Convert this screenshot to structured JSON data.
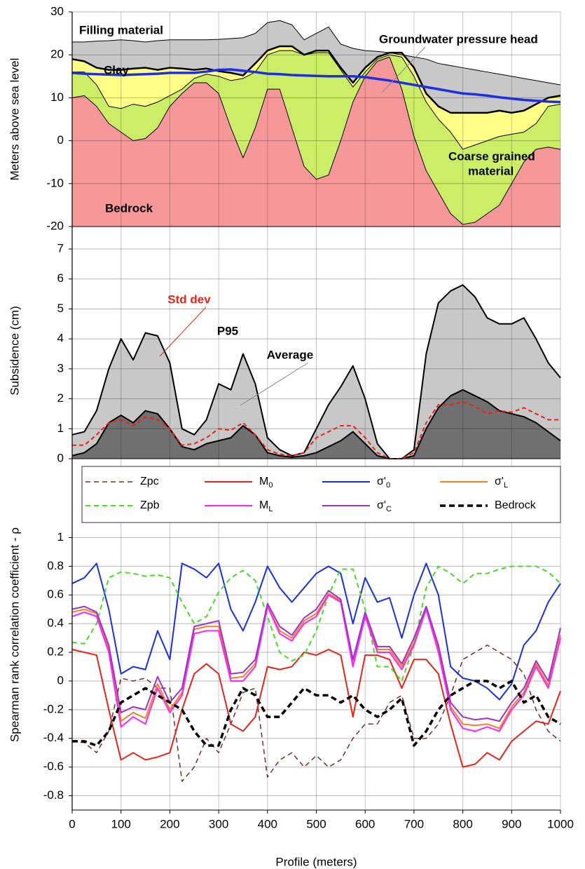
{
  "chart_data": [
    {
      "type": "area",
      "fill_between_layers": true,
      "grid": true,
      "y_label": "Meters above sea level",
      "x": [
        0,
        25,
        50,
        75,
        100,
        125,
        150,
        175,
        200,
        225,
        250,
        275,
        300,
        325,
        350,
        375,
        400,
        425,
        450,
        475,
        500,
        525,
        550,
        575,
        600,
        625,
        650,
        675,
        700,
        725,
        750,
        775,
        800,
        825,
        850,
        875,
        900,
        925,
        950,
        975,
        1000
      ],
      "xlim": [
        0,
        1000
      ],
      "xticks": [
        0,
        100,
        200,
        300,
        400,
        500,
        600,
        700,
        800,
        900,
        1000
      ],
      "ylim": [
        -20,
        30
      ],
      "yticks": [
        -20,
        -10,
        0,
        10,
        20,
        30
      ],
      "annotations": [
        "Filling material",
        "Clay",
        "Groundwater pressure head",
        "Coarse grained",
        "material",
        "Bedrock"
      ],
      "series": [
        {
          "style": "area",
          "color": "#f6989a",
          "line_color": "#000000",
          "width": 1,
          "values": [
            10,
            10.5,
            8,
            4,
            2,
            0,
            0.5,
            3,
            8,
            11,
            13.5,
            13.5,
            11,
            3,
            -4,
            3,
            12,
            12,
            3,
            -6,
            -9,
            -8,
            0,
            9,
            15,
            18.5,
            19.5,
            12,
            1,
            -7,
            -12,
            -17,
            -19.5,
            -19,
            -17,
            -15,
            -10,
            -5,
            -2,
            -1.5,
            -2
          ]
        },
        {
          "style": "area",
          "color": "#ccee66",
          "line_color": "#000000",
          "width": 1,
          "values": [
            16,
            16,
            13,
            8,
            7.5,
            8.5,
            8,
            9,
            10.5,
            12,
            14.5,
            15.5,
            15,
            14,
            14.5,
            16,
            20,
            21,
            21,
            20,
            20.5,
            20.5,
            16.5,
            12.5,
            16,
            19,
            20,
            19.5,
            15,
            9,
            5,
            2,
            -2,
            -1,
            0,
            1,
            1.5,
            2,
            4,
            8,
            8.5
          ]
        },
        {
          "style": "area",
          "color": "#ffff88",
          "line_color": "#000000",
          "width": 2.5,
          "values": [
            19,
            18.5,
            17,
            16.5,
            16.5,
            16.8,
            17,
            16.5,
            17,
            16.8,
            16.5,
            16.8,
            16.2,
            15.8,
            15.2,
            18,
            21,
            22,
            22,
            20,
            21,
            21,
            17,
            13.5,
            17,
            19.5,
            20.5,
            20.5,
            17,
            11,
            8,
            6.5,
            6.5,
            6.5,
            6.5,
            7,
            6.5,
            7,
            8.5,
            10,
            10.5
          ]
        },
        {
          "style": "area",
          "color": "#c8c8c8",
          "line_color": "#000000",
          "width": 1,
          "values": [
            23,
            23,
            23.2,
            23.3,
            23.5,
            23.3,
            23,
            23.3,
            23.5,
            23.5,
            23.5,
            23.5,
            23.6,
            23.8,
            24,
            25,
            27.5,
            28,
            27,
            23.5,
            25,
            26.5,
            22.5,
            21.5,
            21,
            20.8,
            20.5,
            20,
            19.5,
            19,
            18,
            17.5,
            17,
            16.5,
            16,
            15.5,
            15,
            14.5,
            14,
            13.5,
            13
          ]
        },
        {
          "style": "line",
          "color": "#1f2fe0",
          "width": 3.5,
          "values": [
            15.8,
            15.6,
            15.5,
            15.4,
            15.3,
            15.4,
            15.5,
            15.6,
            15.8,
            15.8,
            15.8,
            16.1,
            16.5,
            16.6,
            16.3,
            16,
            15.6,
            15.5,
            15.3,
            15.2,
            15.1,
            15,
            15,
            15,
            14.8,
            14.4,
            14,
            13.5,
            13,
            12.5,
            12,
            11.5,
            11,
            10.8,
            10.5,
            10.1,
            9.8,
            9.5,
            9.3,
            9.1,
            9
          ]
        }
      ]
    },
    {
      "type": "area",
      "fill_between_layers": false,
      "grid": true,
      "y_label": "Subsidence (cm)",
      "x": [
        0,
        25,
        50,
        75,
        100,
        125,
        150,
        175,
        200,
        225,
        250,
        275,
        300,
        325,
        350,
        375,
        400,
        425,
        450,
        475,
        500,
        525,
        550,
        575,
        600,
        625,
        650,
        675,
        700,
        725,
        750,
        775,
        800,
        825,
        850,
        875,
        900,
        925,
        950,
        975,
        1000
      ],
      "xlim": [
        0,
        1000
      ],
      "xticks": [
        0,
        100,
        200,
        300,
        400,
        500,
        600,
        700,
        800,
        900,
        1000
      ],
      "ylim": [
        0,
        7.75
      ],
      "yticks": [
        0,
        1,
        2,
        3,
        4,
        5,
        6,
        7
      ],
      "series": [
        {
          "name": "P95",
          "style": "area",
          "color": "#c8c8c8",
          "line_color": "#000000",
          "width": 2,
          "values": [
            0.8,
            0.9,
            1.6,
            3.0,
            4.0,
            3.3,
            4.2,
            4.1,
            3.2,
            1.0,
            0.8,
            1.3,
            2.5,
            2.3,
            3.5,
            2.5,
            0.7,
            0.3,
            0.1,
            0.2,
            1.0,
            1.8,
            2.4,
            3.1,
            2.0,
            0.5,
            0,
            0,
            0.3,
            3.5,
            5.2,
            5.6,
            5.8,
            5.4,
            4.7,
            4.5,
            4.5,
            4.7,
            4.0,
            3.2,
            2.7
          ]
        },
        {
          "name": "Average",
          "style": "area",
          "color": "#707070",
          "line_color": "#000000",
          "width": 2,
          "values": [
            0.1,
            0.2,
            0.5,
            1.2,
            1.45,
            1.2,
            1.6,
            1.5,
            1.0,
            0.4,
            0.3,
            0.5,
            0.6,
            0.7,
            1.1,
            0.8,
            0.2,
            0.1,
            0.05,
            0.1,
            0.2,
            0.4,
            0.6,
            0.9,
            0.5,
            0.1,
            0,
            0,
            0.1,
            1.0,
            1.7,
            2.1,
            2.3,
            2.1,
            1.9,
            1.6,
            1.5,
            1.4,
            1.2,
            0.9,
            0.6
          ]
        },
        {
          "name": "Std dev",
          "style": "line",
          "color": "#e8231a",
          "width": 2,
          "dash": "6,4",
          "values": [
            0.45,
            0.45,
            0.8,
            1.2,
            1.3,
            1.1,
            1.4,
            1.3,
            1.0,
            0.45,
            0.5,
            0.7,
            1.0,
            0.95,
            1.2,
            0.8,
            0.3,
            0.15,
            0.1,
            0.2,
            0.7,
            0.9,
            1.1,
            1.1,
            0.7,
            0.2,
            0,
            0,
            0.2,
            1.2,
            1.8,
            1.8,
            1.9,
            1.75,
            1.5,
            1.6,
            1.55,
            1.7,
            1.5,
            1.3,
            1.3
          ]
        }
      ]
    },
    {
      "type": "line",
      "grid": true,
      "legend": "top",
      "y_label": "Spearman rank correlation coefficient - ρ",
      "x_label": "Profile (meters)",
      "x": [
        0,
        25,
        50,
        75,
        100,
        125,
        150,
        175,
        200,
        225,
        250,
        275,
        300,
        325,
        350,
        375,
        400,
        425,
        450,
        475,
        500,
        525,
        550,
        575,
        600,
        625,
        650,
        675,
        700,
        725,
        750,
        775,
        800,
        825,
        850,
        875,
        900,
        925,
        950,
        975,
        1000
      ],
      "xlim": [
        0,
        1000
      ],
      "xticks": [
        0,
        100,
        200,
        300,
        400,
        500,
        600,
        700,
        800,
        900,
        1000
      ],
      "ylim": [
        -0.9,
        1.55
      ],
      "yticks": [
        -0.8,
        -0.6,
        -0.4,
        -0.2,
        0,
        0.2,
        0.4,
        0.6,
        0.8,
        1
      ],
      "series": [
        {
          "name": "Zpc",
          "color": "#6b3030",
          "width": 1.5,
          "dash": "7,5",
          "values": [
            -0.42,
            -0.43,
            -0.5,
            -0.35,
            0.02,
            0,
            0.02,
            -0.05,
            -0.05,
            -0.7,
            -0.6,
            -0.4,
            -0.5,
            -0.3,
            -0.08,
            -0.05,
            -0.67,
            -0.55,
            -0.5,
            -0.6,
            -0.52,
            -0.6,
            -0.55,
            -0.4,
            -0.3,
            -0.3,
            -0.15,
            -0.1,
            -0.4,
            -0.4,
            -0.3,
            -0.1,
            0.15,
            0.2,
            0.25,
            0.2,
            0.15,
            0.05,
            -0.2,
            -0.35,
            -0.42
          ]
        },
        {
          "name": "M",
          "subscript": "0",
          "color": "#e8231a",
          "width": 2,
          "values": [
            0.22,
            0.2,
            0.18,
            -0.2,
            -0.55,
            -0.5,
            -0.55,
            -0.53,
            -0.5,
            -0.2,
            0.05,
            0.12,
            0.05,
            -0.3,
            -0.35,
            -0.25,
            0.1,
            0.08,
            0.1,
            0.2,
            0.18,
            0.22,
            0.18,
            -0.25,
            0.18,
            0.18,
            0.15,
            -0.05,
            0.15,
            0.15,
            0.05,
            -0.3,
            -0.6,
            -0.58,
            -0.5,
            -0.55,
            -0.42,
            -0.35,
            -0.28,
            -0.3,
            -0.07
          ]
        },
        {
          "name": "σ'",
          "subscript": "0",
          "color": "#1a2ee6",
          "width": 2,
          "values": [
            0.68,
            0.72,
            0.82,
            0.5,
            0.05,
            0.1,
            0.08,
            0.35,
            0.15,
            0.82,
            0.78,
            0.72,
            0.82,
            0.5,
            0.35,
            0.55,
            0.8,
            0.65,
            0.55,
            0.65,
            0.75,
            0.8,
            0.75,
            0.4,
            0.72,
            0.55,
            0.58,
            0.3,
            0.6,
            0.82,
            0.6,
            0.1,
            0.02,
            0,
            -0.05,
            -0.13,
            -0.02,
            0.25,
            0.35,
            0.55,
            0.68
          ]
        },
        {
          "name": "σ'",
          "subscript": "L",
          "color": "#f08020",
          "width": 2,
          "values": [
            0.48,
            0.5,
            0.47,
            0.22,
            -0.28,
            -0.22,
            -0.26,
            -0.02,
            -0.2,
            -0.08,
            0.36,
            0.38,
            0.38,
            0.02,
            0.03,
            0.12,
            0.52,
            0.35,
            0.3,
            0.42,
            0.47,
            0.61,
            0.56,
            0.12,
            0.46,
            0.22,
            0.22,
            0.1,
            0.27,
            0.5,
            0.22,
            -0.18,
            -0.3,
            -0.31,
            -0.3,
            -0.33,
            -0.18,
            -0.08,
            0.12,
            -0.03,
            0.32
          ]
        },
        {
          "name": "Zpb",
          "color": "#44dd22",
          "width": 2,
          "dash": "7,5",
          "values": [
            0.27,
            0.26,
            0.4,
            0.72,
            0.76,
            0.75,
            0.73,
            0.74,
            0.72,
            0.55,
            0.4,
            0.45,
            0.62,
            0.72,
            0.77,
            0.7,
            0.45,
            0.2,
            0.14,
            0.18,
            0.35,
            0.6,
            0.78,
            0.78,
            0.5,
            0.1,
            0.1,
            0,
            0.25,
            0.65,
            0.8,
            0.75,
            0.68,
            0.75,
            0.75,
            0.78,
            0.8,
            0.8,
            0.8,
            0.76,
            0.68
          ]
        },
        {
          "name": "M",
          "subscript": "L",
          "color": "#ff22ff",
          "width": 2,
          "values": [
            0.45,
            0.48,
            0.45,
            0.2,
            -0.32,
            -0.25,
            -0.3,
            -0.05,
            -0.22,
            -0.1,
            0.33,
            0.35,
            0.35,
            0,
            0,
            0.1,
            0.52,
            0.33,
            0.28,
            0.4,
            0.45,
            0.6,
            0.55,
            0.1,
            0.45,
            0.2,
            0.2,
            0.08,
            0.25,
            0.5,
            0.2,
            -0.2,
            -0.33,
            -0.35,
            -0.32,
            -0.35,
            -0.2,
            -0.1,
            0.1,
            -0.05,
            0.3
          ]
        },
        {
          "name": "σ'",
          "subscript": "C",
          "color": "#9933cc",
          "width": 2,
          "values": [
            0.5,
            0.52,
            0.48,
            0.25,
            -0.22,
            -0.18,
            -0.2,
            0.03,
            -0.15,
            -0.05,
            0.38,
            0.4,
            0.42,
            0.05,
            0.06,
            0.15,
            0.54,
            0.38,
            0.32,
            0.44,
            0.5,
            0.63,
            0.57,
            0.15,
            0.48,
            0.24,
            0.24,
            0.12,
            0.3,
            0.52,
            0.25,
            -0.15,
            -0.25,
            -0.27,
            -0.26,
            -0.28,
            -0.15,
            -0.05,
            0.14,
            0,
            0.37
          ]
        },
        {
          "name": "Bedrock",
          "color": "#000000",
          "width": 3.5,
          "dash": "8,5",
          "values": [
            -0.42,
            -0.42,
            -0.45,
            -0.35,
            -0.15,
            -0.1,
            -0.05,
            -0.1,
            -0.15,
            -0.2,
            -0.35,
            -0.45,
            -0.45,
            -0.2,
            -0.05,
            -0.1,
            -0.25,
            -0.25,
            -0.15,
            -0.05,
            -0.1,
            -0.1,
            -0.15,
            -0.1,
            -0.2,
            -0.25,
            -0.2,
            -0.12,
            -0.45,
            -0.35,
            -0.2,
            -0.1,
            -0.05,
            0,
            0,
            -0.05,
            0,
            -0.15,
            -0.1,
            -0.25,
            -0.3
          ]
        }
      ]
    }
  ]
}
